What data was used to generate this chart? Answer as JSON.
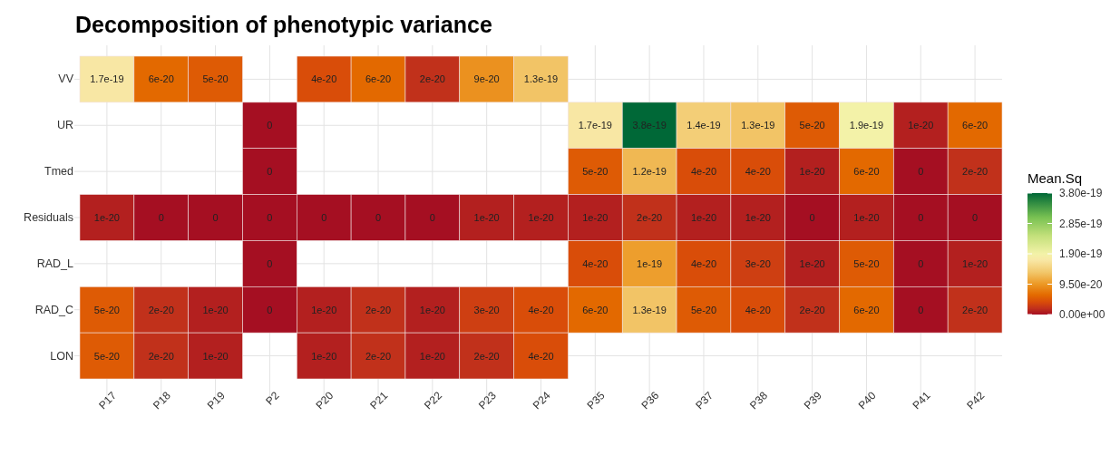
{
  "chart_data": {
    "type": "heatmap",
    "title": "Decomposition of phenotypic variance",
    "legend_title": "Mean.Sq",
    "categories": [
      "P17",
      "P18",
      "P19",
      "P2",
      "P20",
      "P21",
      "P22",
      "P23",
      "P24",
      "P35",
      "P36",
      "P37",
      "P38",
      "P39",
      "P40",
      "P41",
      "P42"
    ],
    "y_categories": [
      "VV",
      "UR",
      "Tmed",
      "Residuals",
      "RAD_L",
      "RAD_C",
      "LON"
    ],
    "cells": [
      [
        1.7e-19,
        6e-20,
        5e-20,
        null,
        4e-20,
        6e-20,
        2e-20,
        9e-20,
        1.3e-19,
        null,
        null,
        null,
        null,
        null,
        null,
        null,
        null
      ],
      [
        null,
        null,
        null,
        0,
        null,
        null,
        null,
        null,
        null,
        1.7e-19,
        3.8e-19,
        1.4e-19,
        1.3e-19,
        5e-20,
        1.9e-19,
        1e-20,
        6e-20
      ],
      [
        null,
        null,
        null,
        0,
        null,
        null,
        null,
        null,
        null,
        5e-20,
        1.2e-19,
        4e-20,
        4e-20,
        1e-20,
        6e-20,
        0,
        2e-20
      ],
      [
        1e-20,
        0,
        0,
        0,
        0,
        0,
        0,
        1e-20,
        1e-20,
        1e-20,
        2e-20,
        1e-20,
        1e-20,
        0,
        1e-20,
        0,
        0
      ],
      [
        null,
        null,
        null,
        0,
        null,
        null,
        null,
        null,
        null,
        4e-20,
        1e-19,
        4e-20,
        3e-20,
        1e-20,
        5e-20,
        0,
        1e-20
      ],
      [
        5e-20,
        2e-20,
        1e-20,
        0,
        1e-20,
        2e-20,
        1e-20,
        3e-20,
        4e-20,
        6e-20,
        1.3e-19,
        5e-20,
        4e-20,
        2e-20,
        6e-20,
        0,
        2e-20
      ],
      [
        5e-20,
        2e-20,
        1e-20,
        null,
        1e-20,
        2e-20,
        1e-20,
        2e-20,
        4e-20,
        null,
        null,
        null,
        null,
        null,
        null,
        null,
        null
      ]
    ],
    "clim": [
      0,
      3.8e-19
    ],
    "cticks": [
      {
        "value": 0,
        "label": "0.00e+00"
      },
      {
        "value": 9.5e-20,
        "label": "9.50e-20"
      },
      {
        "value": 1.9e-19,
        "label": "1.90e-19"
      },
      {
        "value": 2.85e-19,
        "label": "2.85e-19"
      },
      {
        "value": 3.8e-19,
        "label": "3.80e-19"
      }
    ],
    "data_labels": true,
    "grid": true
  }
}
